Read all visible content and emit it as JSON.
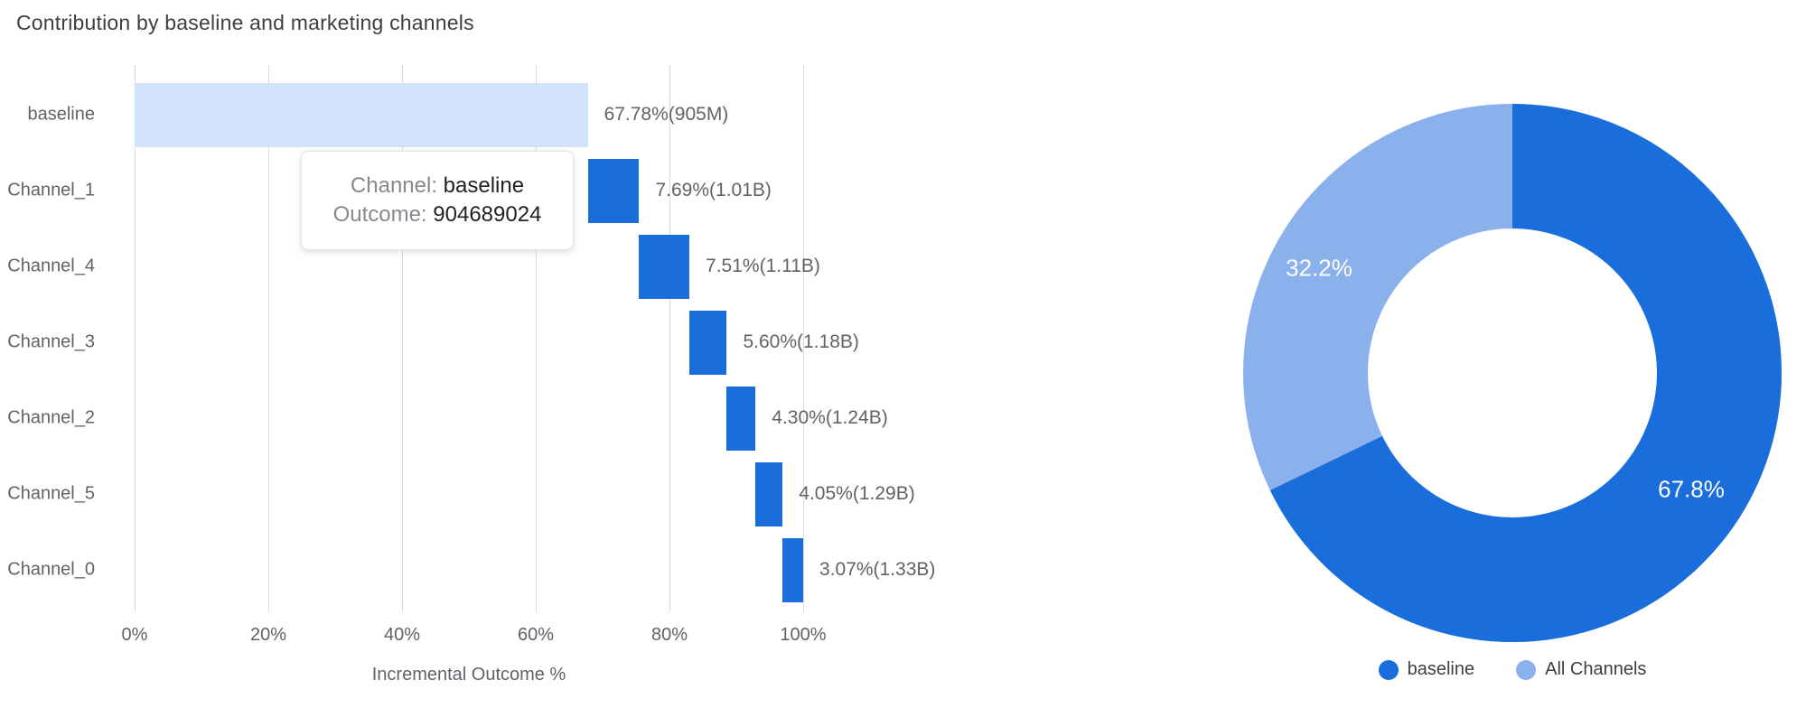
{
  "title": "Contribution by baseline and marketing channels",
  "tooltip": {
    "channel_label": "Channel:",
    "channel_value": "baseline",
    "outcome_label": "Outcome:",
    "outcome_value": "904689024"
  },
  "colors": {
    "bar_dark_blue": "#1a6edb",
    "bar_light_blue": "#d3e3fc",
    "donut_dark_blue": "#1a6edb",
    "donut_light_blue": "#8ab1ec",
    "gridline": "#dadce0"
  },
  "chart_data": [
    {
      "type": "bar",
      "subtype": "horizontal-waterfall",
      "title": "Contribution by baseline and marketing channels",
      "xlabel": "Incremental Outcome %",
      "ylabel": "",
      "xlim": [
        0,
        100
      ],
      "x_ticks": [
        "0%",
        "20%",
        "40%",
        "60%",
        "80%",
        "100%"
      ],
      "grid": true,
      "categories": [
        "baseline",
        "Channel_1",
        "Channel_4",
        "Channel_3",
        "Channel_2",
        "Channel_5",
        "Channel_0"
      ],
      "bars": [
        {
          "label": "baseline",
          "start": 0,
          "end": 67.78,
          "percent": 67.78,
          "value_label": "67.78%(905M)",
          "color": "#d3e3fc"
        },
        {
          "label": "Channel_1",
          "start": 67.78,
          "end": 75.47,
          "percent": 7.69,
          "value_label": "7.69%(1.01B)",
          "color": "#1a6edb"
        },
        {
          "label": "Channel_4",
          "start": 75.47,
          "end": 82.98,
          "percent": 7.51,
          "value_label": "7.51%(1.11B)",
          "color": "#1a6edb"
        },
        {
          "label": "Channel_3",
          "start": 82.98,
          "end": 88.58,
          "percent": 5.6,
          "value_label": "5.60%(1.18B)",
          "color": "#1a6edb"
        },
        {
          "label": "Channel_2",
          "start": 88.58,
          "end": 92.88,
          "percent": 4.3,
          "value_label": "4.30%(1.24B)",
          "color": "#1a6edb"
        },
        {
          "label": "Channel_5",
          "start": 92.88,
          "end": 96.93,
          "percent": 4.05,
          "value_label": "4.05%(1.29B)",
          "color": "#1a6edb"
        },
        {
          "label": "Channel_0",
          "start": 96.93,
          "end": 100.0,
          "percent": 3.07,
          "value_label": "3.07%(1.33B)",
          "color": "#1a6edb"
        }
      ]
    },
    {
      "type": "pie",
      "subtype": "donut",
      "legend_position": "bottom",
      "slices": [
        {
          "label": "baseline",
          "value": 67.8,
          "display": "67.8%",
          "color": "#1a6edb"
        },
        {
          "label": "All Channels",
          "value": 32.2,
          "display": "32.2%",
          "color": "#8ab1ec"
        }
      ]
    }
  ]
}
